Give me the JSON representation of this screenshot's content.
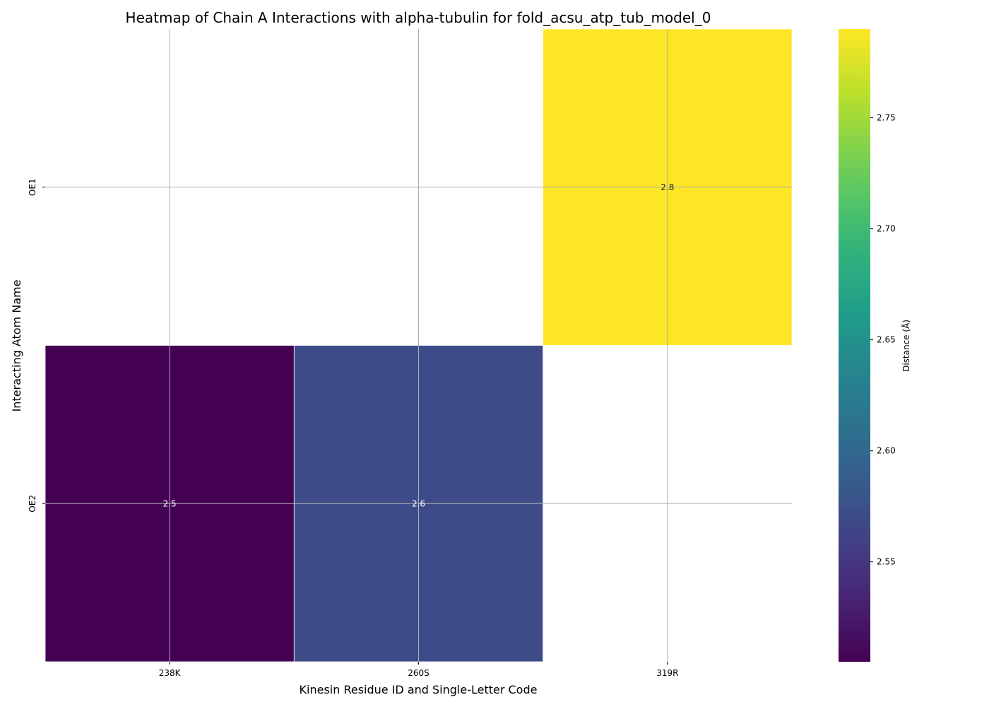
{
  "chart_data": {
    "type": "heatmap",
    "title": "Heatmap of Chain A Interactions with alpha-tubulin for fold_acsu_atp_tub_model_0",
    "xlabel": "Kinesin Residue ID and Single-Letter Code",
    "ylabel": "Interacting Atom Name",
    "x_categories": [
      "238K",
      "260S",
      "319R"
    ],
    "y_categories": [
      "OE1",
      "OE2"
    ],
    "values": [
      [
        null,
        null,
        2.79
      ],
      [
        2.505,
        2.57,
        null
      ]
    ],
    "annotations": [
      [
        "",
        "",
        "2.8"
      ],
      [
        "2.5",
        "2.6",
        ""
      ]
    ],
    "colormap": "viridis",
    "grid": true,
    "colorbar": {
      "label": "Distance (Å)",
      "range": [
        2.505,
        2.79
      ],
      "ticks": [
        2.55,
        2.6,
        2.65,
        2.7,
        2.75
      ],
      "tick_labels": [
        "2.55",
        "2.60",
        "2.65",
        "2.70",
        "2.75"
      ]
    },
    "colors": {
      "grid": "#b0b0b0",
      "cell_border": "#ffffff"
    }
  }
}
